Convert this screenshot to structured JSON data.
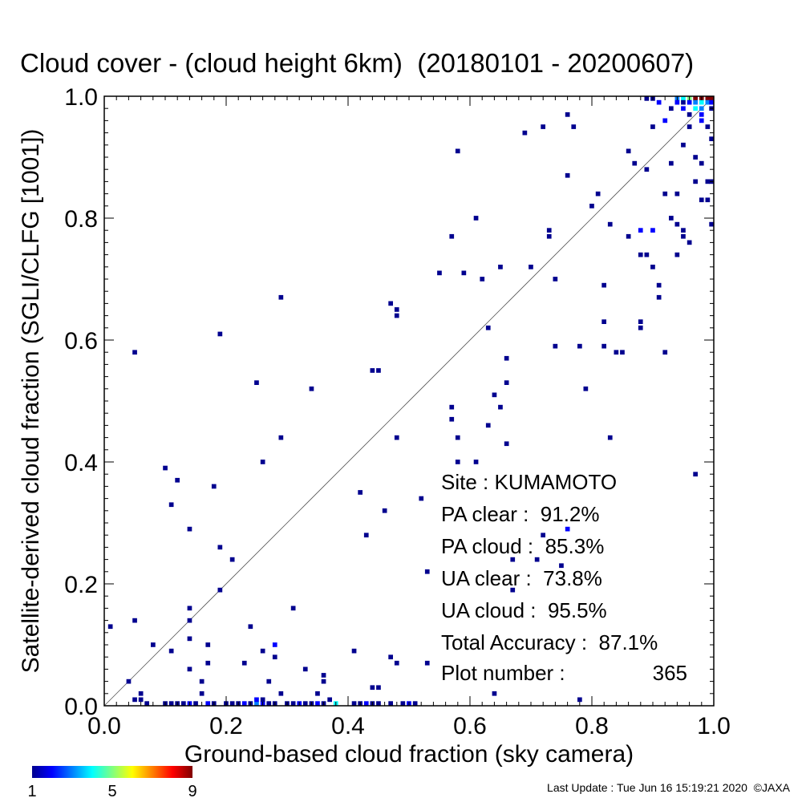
{
  "chart_data": {
    "type": "heatmap",
    "title": "Cloud cover - (cloud height 6km)  (20180101 - 20200607)",
    "xlabel": "Ground-based cloud fraction (sky camera)",
    "ylabel": "Satellite-derived cloud fraction (SGLI/CLFG [1001])",
    "xlim": [
      0.0,
      1.0
    ],
    "ylim": [
      0.0,
      1.0
    ],
    "xticks": [
      "0.0",
      "0.2",
      "0.4",
      "0.6",
      "0.8",
      "1.0"
    ],
    "yticks": [
      "0.0",
      "0.2",
      "0.4",
      "0.6",
      "0.8",
      "1.0"
    ],
    "diagonal_line": true,
    "grid": false,
    "bin_size": 0.01,
    "colorbar": {
      "min": 1,
      "max": 9,
      "labels": [
        "1",
        "5",
        "9"
      ],
      "colormap": "rainbow"
    },
    "points": [
      [
        0.01,
        0.13,
        1
      ],
      [
        0.05,
        0.14,
        1
      ],
      [
        0.05,
        0.58,
        1
      ],
      [
        0.06,
        0.02,
        1
      ],
      [
        0.06,
        0.01,
        1
      ],
      [
        0.05,
        0.01,
        1
      ],
      [
        0.04,
        0.04,
        1
      ],
      [
        0.08,
        0.1,
        1
      ],
      [
        0.1,
        0.39,
        1
      ],
      [
        0.11,
        0.33,
        1
      ],
      [
        0.12,
        0.37,
        1
      ],
      [
        0.11,
        0.09,
        1
      ],
      [
        0.14,
        0.16,
        1
      ],
      [
        0.14,
        0.14,
        1
      ],
      [
        0.14,
        0.29,
        1
      ],
      [
        0.14,
        0.11,
        1
      ],
      [
        0.14,
        0.06,
        1
      ],
      [
        0.16,
        0.04,
        1
      ],
      [
        0.17,
        0.1,
        1
      ],
      [
        0.17,
        0.07,
        1
      ],
      [
        0.16,
        0.02,
        1
      ],
      [
        0.18,
        0.36,
        1
      ],
      [
        0.19,
        0.61,
        1
      ],
      [
        0.19,
        0.26,
        1
      ],
      [
        0.19,
        0.19,
        1
      ],
      [
        0.21,
        0.24,
        1
      ],
      [
        0.23,
        0.07,
        1
      ],
      [
        0.24,
        0.13,
        1
      ],
      [
        0.25,
        0.53,
        1
      ],
      [
        0.26,
        0.4,
        1
      ],
      [
        0.26,
        0.09,
        1
      ],
      [
        0.28,
        0.1,
        2
      ],
      [
        0.28,
        0.08,
        1
      ],
      [
        0.27,
        0.04,
        1
      ],
      [
        0.29,
        0.67,
        1
      ],
      [
        0.29,
        0.44,
        1
      ],
      [
        0.29,
        0.02,
        1
      ],
      [
        0.31,
        0.16,
        1
      ],
      [
        0.33,
        0.06,
        1
      ],
      [
        0.34,
        0.52,
        1
      ],
      [
        0.36,
        0.05,
        1
      ],
      [
        0.36,
        0.04,
        1
      ],
      [
        0.35,
        0.02,
        1
      ],
      [
        0.37,
        0.01,
        1
      ],
      [
        0.41,
        0.09,
        1
      ],
      [
        0.42,
        0.35,
        1
      ],
      [
        0.43,
        0.28,
        1
      ],
      [
        0.44,
        0.55,
        1
      ],
      [
        0.45,
        0.55,
        1
      ],
      [
        0.44,
        0.03,
        1
      ],
      [
        0.45,
        0.03,
        1
      ],
      [
        0.46,
        0.32,
        1
      ],
      [
        0.47,
        0.66,
        1
      ],
      [
        0.48,
        0.65,
        1
      ],
      [
        0.48,
        0.64,
        1
      ],
      [
        0.47,
        0.08,
        1
      ],
      [
        0.48,
        0.07,
        1
      ],
      [
        0.48,
        0.44,
        1
      ],
      [
        0.52,
        0.34,
        1
      ],
      [
        0.53,
        0.22,
        1
      ],
      [
        0.53,
        0.07,
        1
      ],
      [
        0.55,
        0.71,
        1
      ],
      [
        0.57,
        0.77,
        1
      ],
      [
        0.58,
        0.91,
        1
      ],
      [
        0.57,
        0.49,
        1
      ],
      [
        0.57,
        0.47,
        1
      ],
      [
        0.58,
        0.44,
        1
      ],
      [
        0.58,
        0.4,
        1
      ],
      [
        0.59,
        0.71,
        1
      ],
      [
        0.61,
        0.8,
        1
      ],
      [
        0.61,
        0.4,
        1
      ],
      [
        0.62,
        0.7,
        1
      ],
      [
        0.63,
        0.62,
        1
      ],
      [
        0.63,
        0.46,
        1
      ],
      [
        0.64,
        0.51,
        1
      ],
      [
        0.64,
        0.02,
        1
      ],
      [
        0.65,
        0.72,
        1
      ],
      [
        0.65,
        0.49,
        1
      ],
      [
        0.66,
        0.57,
        1
      ],
      [
        0.66,
        0.53,
        1
      ],
      [
        0.66,
        0.43,
        1
      ],
      [
        0.67,
        0.24,
        1
      ],
      [
        0.67,
        0.19,
        1
      ],
      [
        0.69,
        0.94,
        1
      ],
      [
        0.7,
        0.72,
        1
      ],
      [
        0.71,
        0.24,
        1
      ],
      [
        0.72,
        0.28,
        1
      ],
      [
        0.72,
        0.95,
        1
      ],
      [
        0.73,
        0.78,
        1
      ],
      [
        0.73,
        0.77,
        1
      ],
      [
        0.74,
        0.7,
        1
      ],
      [
        0.74,
        0.59,
        1
      ],
      [
        0.75,
        0.23,
        1
      ],
      [
        0.76,
        0.97,
        1
      ],
      [
        0.76,
        0.87,
        1
      ],
      [
        0.76,
        0.29,
        2
      ],
      [
        0.77,
        0.95,
        1
      ],
      [
        0.78,
        0.59,
        1
      ],
      [
        0.78,
        0.01,
        1
      ],
      [
        0.79,
        0.52,
        1
      ],
      [
        0.8,
        0.82,
        1
      ],
      [
        0.81,
        0.84,
        1
      ],
      [
        0.82,
        0.69,
        1
      ],
      [
        0.82,
        0.63,
        1
      ],
      [
        0.82,
        0.59,
        1
      ],
      [
        0.83,
        0.79,
        1
      ],
      [
        0.83,
        0.44,
        1
      ],
      [
        0.84,
        0.58,
        1
      ],
      [
        0.85,
        0.58,
        1
      ],
      [
        0.86,
        0.91,
        1
      ],
      [
        0.86,
        0.77,
        1
      ],
      [
        0.87,
        0.89,
        1
      ],
      [
        0.88,
        0.78,
        2
      ],
      [
        0.88,
        0.74,
        1
      ],
      [
        0.88,
        0.63,
        1
      ],
      [
        0.88,
        0.62,
        1
      ],
      [
        0.89,
        0.88,
        1
      ],
      [
        0.89,
        0.74,
        1
      ],
      [
        0.9,
        0.78,
        2
      ],
      [
        0.9,
        0.95,
        1
      ],
      [
        0.9,
        0.72,
        1
      ],
      [
        0.91,
        0.69,
        1
      ],
      [
        0.91,
        0.67,
        1
      ],
      [
        0.92,
        0.96,
        2
      ],
      [
        0.92,
        0.84,
        1
      ],
      [
        0.92,
        0.58,
        1
      ],
      [
        0.93,
        0.89,
        1
      ],
      [
        0.93,
        0.8,
        1
      ],
      [
        0.94,
        0.84,
        1
      ],
      [
        0.94,
        0.79,
        1
      ],
      [
        0.94,
        0.74,
        1
      ],
      [
        0.95,
        0.78,
        1
      ],
      [
        0.95,
        0.77,
        1
      ],
      [
        0.96,
        0.76,
        1
      ],
      [
        0.95,
        0.92,
        1
      ],
      [
        0.97,
        0.38,
        1
      ],
      [
        0.97,
        0.9,
        1
      ],
      [
        0.97,
        0.86,
        1
      ],
      [
        0.98,
        0.89,
        1
      ],
      [
        0.98,
        0.83,
        1
      ],
      [
        0.99,
        0.83,
        1
      ],
      [
        0.99,
        0.86,
        1
      ],
      [
        1.0,
        0.86,
        1
      ],
      [
        1.0,
        0.79,
        1
      ],
      [
        1.0,
        0.93,
        1
      ],
      [
        0.99,
        0.95,
        1
      ],
      [
        0.96,
        0.95,
        1
      ],
      [
        0.98,
        0.96,
        2
      ],
      [
        0.89,
        1.0,
        1
      ],
      [
        0.9,
        1.0,
        1
      ],
      [
        0.91,
        0.99,
        2
      ],
      [
        0.94,
        1.0,
        3
      ],
      [
        0.95,
        1.0,
        4
      ],
      [
        0.96,
        1.0,
        5
      ],
      [
        0.97,
        1.0,
        9
      ],
      [
        0.98,
        1.0,
        9
      ],
      [
        0.99,
        1.0,
        9
      ],
      [
        1.0,
        1.0,
        9
      ],
      [
        0.94,
        0.99,
        2
      ],
      [
        0.95,
        0.99,
        1
      ],
      [
        0.96,
        0.99,
        2
      ],
      [
        0.97,
        0.99,
        3
      ],
      [
        0.98,
        0.99,
        4
      ],
      [
        0.99,
        0.99,
        3
      ],
      [
        1.0,
        0.99,
        2
      ],
      [
        0.93,
        0.98,
        1
      ],
      [
        0.95,
        0.98,
        2
      ],
      [
        0.97,
        0.98,
        4
      ],
      [
        0.98,
        0.98,
        3
      ],
      [
        1.0,
        0.98,
        1
      ],
      [
        0.96,
        0.97,
        1
      ],
      [
        0.98,
        0.97,
        2
      ],
      [
        0.1,
        0.0,
        1
      ],
      [
        0.11,
        0.0,
        1
      ],
      [
        0.12,
        0.0,
        1
      ],
      [
        0.13,
        0.0,
        1
      ],
      [
        0.14,
        0.0,
        2
      ],
      [
        0.15,
        0.0,
        1
      ],
      [
        0.17,
        0.0,
        2
      ],
      [
        0.18,
        0.0,
        1
      ],
      [
        0.2,
        0.0,
        1
      ],
      [
        0.21,
        0.0,
        1
      ],
      [
        0.22,
        0.0,
        1
      ],
      [
        0.23,
        0.0,
        2
      ],
      [
        0.24,
        0.0,
        1
      ],
      [
        0.25,
        0.0,
        3
      ],
      [
        0.26,
        0.0,
        2
      ],
      [
        0.25,
        0.01,
        2
      ],
      [
        0.26,
        0.01,
        1
      ],
      [
        0.27,
        0.0,
        1
      ],
      [
        0.28,
        0.0,
        1
      ],
      [
        0.3,
        0.0,
        1
      ],
      [
        0.31,
        0.0,
        1
      ],
      [
        0.32,
        0.0,
        2
      ],
      [
        0.33,
        0.0,
        1
      ],
      [
        0.34,
        0.0,
        1
      ],
      [
        0.35,
        0.0,
        2
      ],
      [
        0.36,
        0.0,
        1
      ],
      [
        0.38,
        0.0,
        4
      ],
      [
        0.41,
        0.0,
        1
      ],
      [
        0.42,
        0.0,
        1
      ],
      [
        0.43,
        0.0,
        2
      ],
      [
        0.44,
        0.0,
        1
      ],
      [
        0.45,
        0.0,
        1
      ],
      [
        0.47,
        0.0,
        1
      ],
      [
        0.49,
        0.0,
        1
      ],
      [
        0.5,
        0.0,
        2
      ],
      [
        0.51,
        0.0,
        1
      ],
      [
        0.07,
        0.0,
        1
      ]
    ]
  },
  "stats": {
    "site": "Site : KUMAMOTO",
    "pa_clear": "PA clear :  91.2%",
    "pa_cloud": "PA cloud :  85.3%",
    "ua_clear": "UA clear :  73.8%",
    "ua_cloud": "UA cloud :  95.5%",
    "total_accuracy": "Total Accuracy :  87.1%",
    "plot_number_label": "Plot number :",
    "plot_number_value": "365"
  },
  "footer": "Last Update : Tue Jun 16 15:19:21 2020  ©JAXA"
}
